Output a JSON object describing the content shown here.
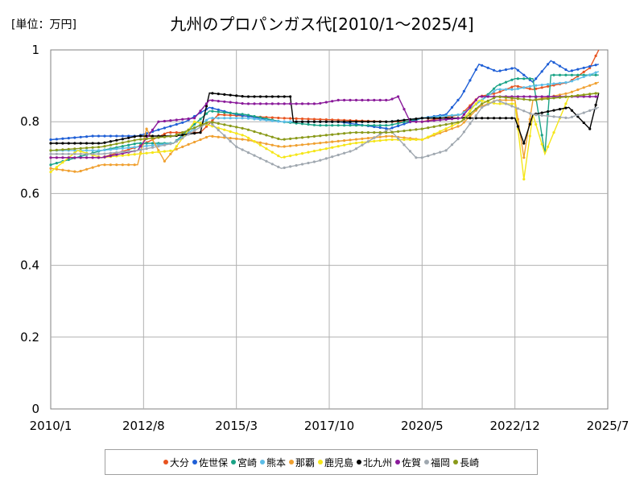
{
  "chart_data": {
    "type": "line",
    "title": "九州のプロパンガス代[2010/1～2025/4]",
    "unit_label": "[単位：万円]",
    "x_range": [
      "2010-01",
      "2025-07"
    ],
    "x_ticks": [
      "2010/1",
      "2012/8",
      "2015/3",
      "2017/10",
      "2020/5",
      "2022/12",
      "2025/7"
    ],
    "ylim": [
      0,
      1
    ],
    "y_ticks": [
      "0",
      "0.2",
      "0.4",
      "0.6",
      "0.8",
      "1"
    ],
    "grid": true,
    "legend_position": "bottom",
    "series": [
      {
        "name": "大分",
        "color": "#e8531f",
        "points": [
          [
            "2010-01",
            0.7
          ],
          [
            "2011-06",
            0.7
          ],
          [
            "2012-06",
            0.73
          ],
          [
            "2013-04",
            0.77
          ],
          [
            "2014-03",
            0.77
          ],
          [
            "2014-09",
            0.82
          ],
          [
            "2016-06",
            0.81
          ],
          [
            "2019-06",
            0.8
          ],
          [
            "2020-05",
            0.8
          ],
          [
            "2021-06",
            0.82
          ],
          [
            "2021-12",
            0.87
          ],
          [
            "2022-06",
            0.88
          ],
          [
            "2022-12",
            0.9
          ],
          [
            "2023-06",
            0.89
          ],
          [
            "2024-06",
            0.91
          ],
          [
            "2025-01",
            0.95
          ],
          [
            "2025-04",
            1.0
          ]
        ]
      },
      {
        "name": "佐世保",
        "color": "#1f5fd6",
        "points": [
          [
            "2010-01",
            0.75
          ],
          [
            "2011-03",
            0.76
          ],
          [
            "2012-06",
            0.76
          ],
          [
            "2013-02",
            0.78
          ],
          [
            "2013-10",
            0.8
          ],
          [
            "2014-06",
            0.84
          ],
          [
            "2015-03",
            0.82
          ],
          [
            "2016-06",
            0.8
          ],
          [
            "2018-01",
            0.8
          ],
          [
            "2019-06",
            0.78
          ],
          [
            "2020-05",
            0.81
          ],
          [
            "2021-01",
            0.82
          ],
          [
            "2021-06",
            0.87
          ],
          [
            "2021-12",
            0.96
          ],
          [
            "2022-06",
            0.94
          ],
          [
            "2022-12",
            0.95
          ],
          [
            "2023-06",
            0.91
          ],
          [
            "2023-12",
            0.97
          ],
          [
            "2024-06",
            0.94
          ],
          [
            "2025-04",
            0.96
          ]
        ]
      },
      {
        "name": "宮崎",
        "color": "#1aa386",
        "points": [
          [
            "2010-01",
            0.68
          ],
          [
            "2011-06",
            0.72
          ],
          [
            "2012-06",
            0.74
          ],
          [
            "2013-06",
            0.74
          ],
          [
            "2014-06",
            0.83
          ],
          [
            "2015-06",
            0.82
          ],
          [
            "2016-06",
            0.8
          ],
          [
            "2017-06",
            0.79
          ],
          [
            "2019-06",
            0.79
          ],
          [
            "2020-05",
            0.81
          ],
          [
            "2021-06",
            0.82
          ],
          [
            "2022-01",
            0.86
          ],
          [
            "2022-06",
            0.9
          ],
          [
            "2022-12",
            0.92
          ],
          [
            "2023-06",
            0.92
          ],
          [
            "2023-10",
            0.71
          ],
          [
            "2023-12",
            0.93
          ],
          [
            "2025-04",
            0.93
          ]
        ]
      },
      {
        "name": "熊本",
        "color": "#5bbde8",
        "points": [
          [
            "2010-01",
            0.72
          ],
          [
            "2011-06",
            0.72
          ],
          [
            "2012-06",
            0.73
          ],
          [
            "2013-06",
            0.74
          ],
          [
            "2014-06",
            0.81
          ],
          [
            "2015-06",
            0.81
          ],
          [
            "2016-06",
            0.8
          ],
          [
            "2017-06",
            0.8
          ],
          [
            "2019-06",
            0.8
          ],
          [
            "2020-05",
            0.81
          ],
          [
            "2021-06",
            0.82
          ],
          [
            "2022-01",
            0.86
          ],
          [
            "2022-06",
            0.89
          ],
          [
            "2022-12",
            0.89
          ],
          [
            "2023-06",
            0.9
          ],
          [
            "2024-06",
            0.91
          ],
          [
            "2025-04",
            0.94
          ]
        ]
      },
      {
        "name": "那覇",
        "color": "#f0a030",
        "points": [
          [
            "2010-01",
            0.67
          ],
          [
            "2010-10",
            0.66
          ],
          [
            "2011-06",
            0.68
          ],
          [
            "2012-06",
            0.68
          ],
          [
            "2012-09",
            0.78
          ],
          [
            "2013-03",
            0.69
          ],
          [
            "2013-06",
            0.72
          ],
          [
            "2014-06",
            0.76
          ],
          [
            "2015-06",
            0.75
          ],
          [
            "2016-06",
            0.73
          ],
          [
            "2017-06",
            0.74
          ],
          [
            "2018-06",
            0.75
          ],
          [
            "2019-06",
            0.76
          ],
          [
            "2020-05",
            0.75
          ],
          [
            "2021-06",
            0.79
          ],
          [
            "2021-12",
            0.84
          ],
          [
            "2022-06",
            0.86
          ],
          [
            "2022-12",
            0.86
          ],
          [
            "2023-03",
            0.7
          ],
          [
            "2023-06",
            0.86
          ],
          [
            "2024-06",
            0.88
          ],
          [
            "2025-04",
            0.91
          ]
        ]
      },
      {
        "name": "鹿児島",
        "color": "#f5e618",
        "points": [
          [
            "2010-01",
            0.66
          ],
          [
            "2010-10",
            0.72
          ],
          [
            "2011-06",
            0.7
          ],
          [
            "2012-06",
            0.71
          ],
          [
            "2013-06",
            0.72
          ],
          [
            "2014-01",
            0.8
          ],
          [
            "2014-06",
            0.79
          ],
          [
            "2015-06",
            0.76
          ],
          [
            "2016-06",
            0.7
          ],
          [
            "2017-06",
            0.72
          ],
          [
            "2018-06",
            0.74
          ],
          [
            "2019-06",
            0.75
          ],
          [
            "2020-05",
            0.75
          ],
          [
            "2021-06",
            0.8
          ],
          [
            "2021-12",
            0.86
          ],
          [
            "2022-06",
            0.85
          ],
          [
            "2022-12",
            0.85
          ],
          [
            "2023-03",
            0.64
          ],
          [
            "2023-06",
            0.82
          ],
          [
            "2023-10",
            0.71
          ],
          [
            "2024-06",
            0.87
          ],
          [
            "2025-04",
            0.88
          ]
        ]
      },
      {
        "name": "北九州",
        "color": "#000000",
        "points": [
          [
            "2010-01",
            0.74
          ],
          [
            "2011-06",
            0.74
          ],
          [
            "2012-06",
            0.76
          ],
          [
            "2013-06",
            0.76
          ],
          [
            "2014-03",
            0.77
          ],
          [
            "2014-06",
            0.88
          ],
          [
            "2015-06",
            0.87
          ],
          [
            "2016-09",
            0.87
          ],
          [
            "2016-10",
            0.8
          ],
          [
            "2018-06",
            0.8
          ],
          [
            "2019-06",
            0.8
          ],
          [
            "2020-05",
            0.81
          ],
          [
            "2021-06",
            0.81
          ],
          [
            "2022-12",
            0.81
          ],
          [
            "2023-03",
            0.74
          ],
          [
            "2023-06",
            0.82
          ],
          [
            "2023-12",
            0.83
          ],
          [
            "2024-06",
            0.84
          ],
          [
            "2025-01",
            0.78
          ],
          [
            "2025-04",
            0.88
          ]
        ]
      },
      {
        "name": "佐賀",
        "color": "#8a1a9a",
        "points": [
          [
            "2010-01",
            0.7
          ],
          [
            "2011-06",
            0.7
          ],
          [
            "2012-06",
            0.72
          ],
          [
            "2013-01",
            0.8
          ],
          [
            "2014-01",
            0.81
          ],
          [
            "2014-06",
            0.86
          ],
          [
            "2015-06",
            0.85
          ],
          [
            "2017-06",
            0.85
          ],
          [
            "2018-01",
            0.86
          ],
          [
            "2019-06",
            0.86
          ],
          [
            "2019-09",
            0.87
          ],
          [
            "2020-01",
            0.8
          ],
          [
            "2020-05",
            0.8
          ],
          [
            "2021-06",
            0.81
          ],
          [
            "2021-12",
            0.87
          ],
          [
            "2022-06",
            0.87
          ],
          [
            "2023-06",
            0.87
          ],
          [
            "2024-06",
            0.87
          ],
          [
            "2025-04",
            0.87
          ]
        ]
      },
      {
        "name": "福岡",
        "color": "#a0a8b0",
        "points": [
          [
            "2010-01",
            0.71
          ],
          [
            "2011-06",
            0.71
          ],
          [
            "2012-06",
            0.72
          ],
          [
            "2013-06",
            0.74
          ],
          [
            "2014-06",
            0.8
          ],
          [
            "2015-03",
            0.73
          ],
          [
            "2016-01",
            0.69
          ],
          [
            "2016-06",
            0.67
          ],
          [
            "2017-06",
            0.69
          ],
          [
            "2018-06",
            0.72
          ],
          [
            "2019-06",
            0.78
          ],
          [
            "2020-03",
            0.7
          ],
          [
            "2020-05",
            0.7
          ],
          [
            "2021-01",
            0.72
          ],
          [
            "2021-06",
            0.76
          ],
          [
            "2022-01",
            0.84
          ],
          [
            "2022-06",
            0.86
          ],
          [
            "2023-06",
            0.82
          ],
          [
            "2024-06",
            0.81
          ],
          [
            "2025-04",
            0.84
          ]
        ]
      },
      {
        "name": "長崎",
        "color": "#8a9a1a",
        "points": [
          [
            "2010-01",
            0.72
          ],
          [
            "2011-06",
            0.73
          ],
          [
            "2012-06",
            0.75
          ],
          [
            "2013-06",
            0.76
          ],
          [
            "2014-06",
            0.8
          ],
          [
            "2015-06",
            0.78
          ],
          [
            "2016-06",
            0.75
          ],
          [
            "2017-06",
            0.76
          ],
          [
            "2018-06",
            0.77
          ],
          [
            "2019-06",
            0.77
          ],
          [
            "2020-05",
            0.78
          ],
          [
            "2021-06",
            0.8
          ],
          [
            "2022-01",
            0.85
          ],
          [
            "2022-06",
            0.87
          ],
          [
            "2023-06",
            0.86
          ],
          [
            "2024-06",
            0.87
          ],
          [
            "2025-04",
            0.88
          ]
        ]
      }
    ]
  }
}
